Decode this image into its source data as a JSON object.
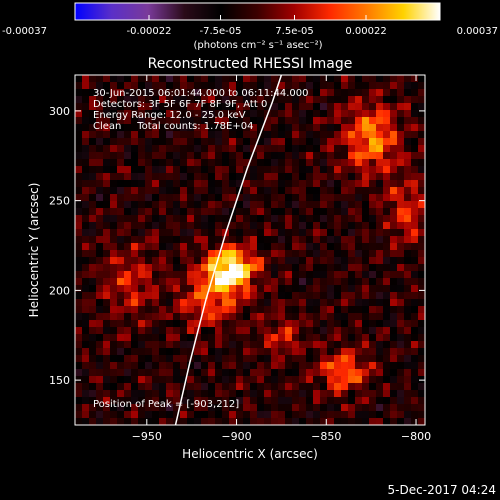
{
  "colorbar": {
    "ticks": [
      "-0.00037",
      "-0.00022",
      "-7.5e-05",
      "7.5e-05",
      "0.00022",
      "0.00037"
    ],
    "range": [
      -0.00037,
      0.00037
    ],
    "units_label": "(photons cm⁻² s⁻¹ asec⁻²)",
    "colormap": [
      "#0000ff",
      "#5a2fc8",
      "#7a3a9a",
      "#2a0a18",
      "#000000",
      "#3c0000",
      "#a00000",
      "#ff2a00",
      "#ff7a00",
      "#ffd200",
      "#ffffff"
    ]
  },
  "chart_data": {
    "type": "heatmap",
    "title": "Reconstructed RHESSI Image",
    "xlabel": "Heliocentric X (arcsec)",
    "ylabel": "Heliocentric Y (arcsec)",
    "xlim": [
      -990,
      -795
    ],
    "ylim": [
      125,
      320
    ],
    "x_ticks": [
      -950,
      -900,
      -850,
      -800
    ],
    "y_ticks": [
      150,
      200,
      250,
      300
    ],
    "annotations": [
      "30-Jun-2015 06:01:44.000 to 06:11:44.000",
      "Detectors: 3F 5F 6F 7F 8F 9F, Att 0",
      "Energy Range: 12.0 - 25.0 keV",
      "Clean     Total counts: 1.78E+04"
    ],
    "peak_label": "Position of Peak = [-903,212]",
    "peak": [
      -903,
      212
    ],
    "limb_points": [
      [
        -934,
        125
      ],
      [
        -926,
        160
      ],
      [
        -917,
        195
      ],
      [
        -906,
        232
      ],
      [
        -894,
        268
      ],
      [
        -880,
        305
      ],
      [
        -875,
        320
      ]
    ],
    "bright_sources": [
      {
        "x": -903,
        "y": 212,
        "sx": 14,
        "sy": 12,
        "amp": 1.0
      },
      {
        "x": -915,
        "y": 195,
        "sx": 18,
        "sy": 16,
        "amp": 0.45
      },
      {
        "x": -840,
        "y": 155,
        "sx": 14,
        "sy": 12,
        "amp": 0.55
      },
      {
        "x": -825,
        "y": 285,
        "sx": 16,
        "sy": 20,
        "amp": 0.6
      },
      {
        "x": -805,
        "y": 245,
        "sx": 12,
        "sy": 18,
        "amp": 0.4
      },
      {
        "x": -960,
        "y": 205,
        "sx": 16,
        "sy": 20,
        "amp": 0.35
      },
      {
        "x": -875,
        "y": 175,
        "sx": 12,
        "sy": 12,
        "amp": 0.35
      }
    ]
  },
  "footer": {
    "date": "5-Dec-2017 04:24"
  }
}
